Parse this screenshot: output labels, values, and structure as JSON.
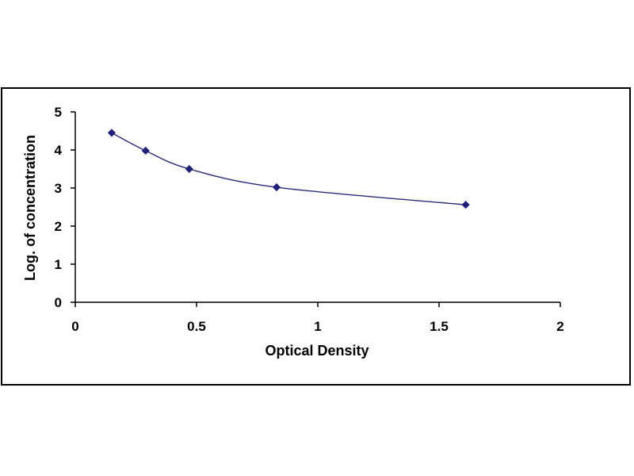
{
  "chart_data": {
    "type": "line",
    "xlabel": "Optical Density",
    "ylabel": "Log. of concentration",
    "xlim": [
      0,
      2
    ],
    "ylim": [
      0,
      5
    ],
    "x_ticks": [
      "0",
      "0.5",
      "1",
      "1.5",
      "2"
    ],
    "y_ticks": [
      "0",
      "1",
      "2",
      "3",
      "4",
      "5"
    ],
    "grid": false,
    "series": [
      {
        "x": [
          0.15,
          0.29,
          0.47,
          0.83,
          1.61
        ],
        "y": [
          4.45,
          3.98,
          3.5,
          3.02,
          2.56
        ],
        "marker": "diamond",
        "smooth": true
      }
    ],
    "colors": {
      "line": "#2b2b7a",
      "marker": "#1f1f80",
      "axis": "#000000"
    }
  }
}
